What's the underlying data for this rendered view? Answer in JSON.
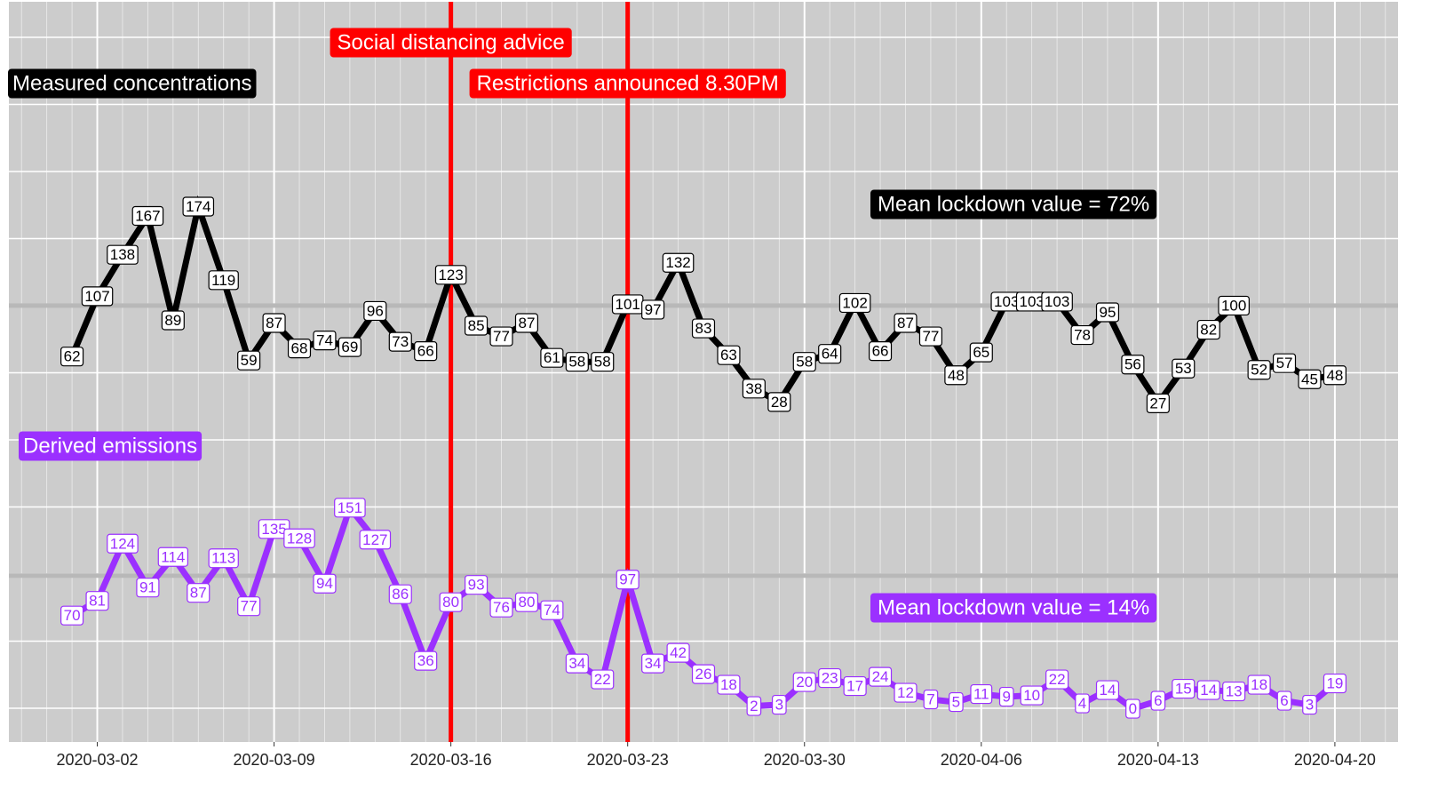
{
  "chart_data": {
    "type": "line",
    "x": [
      "2020-03-01",
      "2020-03-02",
      "2020-03-03",
      "2020-03-04",
      "2020-03-05",
      "2020-03-06",
      "2020-03-07",
      "2020-03-08",
      "2020-03-09",
      "2020-03-10",
      "2020-03-11",
      "2020-03-12",
      "2020-03-13",
      "2020-03-14",
      "2020-03-15",
      "2020-03-16",
      "2020-03-17",
      "2020-03-18",
      "2020-03-19",
      "2020-03-20",
      "2020-03-21",
      "2020-03-22",
      "2020-03-23",
      "2020-03-24",
      "2020-03-25",
      "2020-03-26",
      "2020-03-27",
      "2020-03-28",
      "2020-03-29",
      "2020-03-30",
      "2020-03-31",
      "2020-04-01",
      "2020-04-02",
      "2020-04-03",
      "2020-04-04",
      "2020-04-05",
      "2020-04-06",
      "2020-04-07",
      "2020-04-08",
      "2020-04-09",
      "2020-04-10",
      "2020-04-11",
      "2020-04-12",
      "2020-04-13",
      "2020-04-14",
      "2020-04-15",
      "2020-04-16",
      "2020-04-17",
      "2020-04-18",
      "2020-04-19",
      "2020-04-20"
    ],
    "xticks": [
      "2020-03-02",
      "2020-03-09",
      "2020-03-16",
      "2020-03-23",
      "2020-03-30",
      "2020-04-06",
      "2020-04-13",
      "2020-04-20"
    ],
    "series": [
      {
        "name": "Measured concentrations",
        "color": "#000000",
        "mean_label": "Mean lockdown value = 72%",
        "reference": 100,
        "ylim": [
          -226,
          327
        ],
        "values": [
          62,
          107,
          138,
          167,
          89,
          174,
          119,
          59,
          87,
          68,
          74,
          69,
          96,
          73,
          66,
          123,
          85,
          77,
          87,
          61,
          58,
          58,
          101,
          97,
          132,
          83,
          63,
          38,
          28,
          58,
          64,
          102,
          66,
          87,
          77,
          48,
          65,
          103,
          103,
          103,
          78,
          95,
          56,
          27,
          53,
          82,
          100,
          52,
          57,
          45,
          48
        ]
      },
      {
        "name": "Derived emissions",
        "color": "#9b30ff",
        "mean_label": "Mean lockdown value = 14%",
        "reference": 100,
        "ylim": [
          -25,
          531
        ],
        "values": [
          70,
          81,
          124,
          91,
          114,
          87,
          113,
          77,
          135,
          128,
          94,
          151,
          127,
          86,
          36,
          80,
          93,
          76,
          80,
          74,
          34,
          22,
          97,
          34,
          42,
          26,
          18,
          2,
          3,
          20,
          23,
          17,
          24,
          12,
          7,
          5,
          11,
          9,
          10,
          22,
          4,
          14,
          0,
          6,
          15,
          14,
          13,
          18,
          6,
          3,
          19
        ]
      }
    ],
    "annotations": [
      {
        "x": "2020-03-16",
        "label": "Social distancing advice",
        "color": "#ff0000"
      },
      {
        "x": "2020-03-23",
        "label": "Restrictions announced 8.30PM",
        "color": "#ff0000"
      }
    ]
  }
}
